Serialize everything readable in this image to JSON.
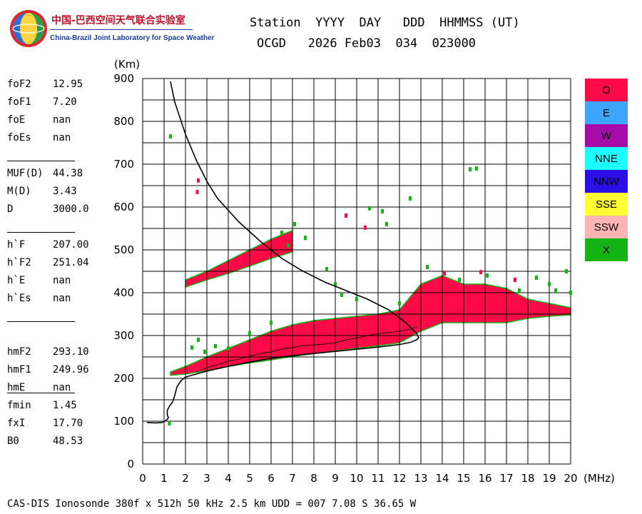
{
  "logo": {
    "cn": "中国-巴西空间天气联合实验室",
    "en": "China-Brazil Joint Laboratory for Space Weather"
  },
  "header": {
    "line1": "Station  YYYY  DAY   DDD  HHMMSS (UT)",
    "line2": "OCGD   2026 Feb03  034  023000"
  },
  "params": [
    {
      "name": "foF2",
      "value": "12.95"
    },
    {
      "name": "foF1",
      "value": "7.20"
    },
    {
      "name": "foE",
      "value": "nan"
    },
    {
      "name": "foEs",
      "value": "nan"
    },
    {
      "name": "MUF(D)",
      "value": "44.38"
    },
    {
      "name": "M(D)",
      "value": "3.43"
    },
    {
      "name": "D",
      "value": "3000.0"
    },
    {
      "name": "h`F",
      "value": "207.00"
    },
    {
      "name": "h`F2",
      "value": "251.04"
    },
    {
      "name": "h`E",
      "value": "nan"
    },
    {
      "name": "h`Es",
      "value": "nan"
    },
    {
      "name": "hmF2",
      "value": "293.10"
    },
    {
      "name": "hmF1",
      "value": "249.96"
    },
    {
      "name": "hmE",
      "value": "nan"
    },
    {
      "name": "fmin",
      "value": "1.45"
    },
    {
      "name": "fxI",
      "value": "17.70"
    },
    {
      "name": "B0",
      "value": "48.53"
    }
  ],
  "legend": [
    {
      "label": "O",
      "color": "#ff0a46"
    },
    {
      "label": "E",
      "color": "#3ea6ff"
    },
    {
      "label": "W",
      "color": "#a80ca8"
    },
    {
      "label": "NNE",
      "color": "#1affff"
    },
    {
      "label": "NNW",
      "color": "#2a0fe6"
    },
    {
      "label": "SSE",
      "color": "#ffff32"
    },
    {
      "label": "SSW",
      "color": "#ffb4b4"
    },
    {
      "label": "X",
      "color": "#14b414"
    }
  ],
  "footer": "CAS-DIS Ionosonde 380f x 512h 50 kHz 2.5 km UDD = 007 7.08 S 36.65 W",
  "chart_data": {
    "type": "scatter",
    "xlabel": "(MHz)",
    "ylabel": "(Km)",
    "xlim": [
      0,
      20
    ],
    "ylim": [
      0,
      900
    ],
    "xticks": [
      0,
      1,
      2,
      3,
      4,
      5,
      6,
      7,
      8,
      9,
      10,
      11,
      12,
      13,
      14,
      15,
      16,
      17,
      18,
      19,
      20
    ],
    "yticks": [
      0,
      100,
      200,
      300,
      400,
      500,
      600,
      700,
      800,
      900
    ],
    "grid": true,
    "series": [
      {
        "name": "O",
        "kind": "trace",
        "points": [
          [
            1.3,
            210
          ],
          [
            1.6,
            213
          ],
          [
            2.0,
            220
          ],
          [
            2.5,
            228
          ],
          [
            3.0,
            237
          ],
          [
            3.5,
            246
          ],
          [
            4.0,
            255
          ],
          [
            4.5,
            263
          ],
          [
            5.0,
            270
          ],
          [
            5.5,
            278
          ],
          [
            6.0,
            287
          ],
          [
            6.5,
            296
          ],
          [
            7.0,
            306
          ],
          [
            7.5,
            313
          ],
          [
            8.0,
            320
          ],
          [
            8.5,
            326
          ],
          [
            9.0,
            331
          ],
          [
            9.5,
            333
          ],
          [
            10.0,
            337
          ],
          [
            10.5,
            340
          ],
          [
            11.0,
            343
          ],
          [
            11.5,
            348
          ],
          [
            12.0,
            352
          ],
          [
            12.5,
            360
          ],
          [
            13.0,
            370
          ],
          [
            13.5,
            378
          ],
          [
            14.0,
            385
          ],
          [
            14.5,
            388
          ],
          [
            15.0,
            390
          ],
          [
            15.5,
            388
          ],
          [
            16.0,
            385
          ],
          [
            16.5,
            383
          ],
          [
            17.0,
            380
          ],
          [
            17.5,
            375
          ],
          [
            18.0,
            368
          ],
          [
            18.5,
            362
          ],
          [
            19.0,
            358
          ],
          [
            19.5,
            356
          ],
          [
            20.0,
            354
          ]
        ],
        "band_low": [
          [
            1.3,
            207
          ],
          [
            2.0,
            210
          ],
          [
            3.0,
            218
          ],
          [
            4.0,
            228
          ],
          [
            5.0,
            236
          ],
          [
            6.0,
            243
          ],
          [
            7.0,
            251
          ],
          [
            8.0,
            258
          ],
          [
            9.0,
            264
          ],
          [
            10.0,
            270
          ],
          [
            11.0,
            276
          ],
          [
            12.0,
            283
          ],
          [
            13.0,
            310
          ],
          [
            14.0,
            330
          ],
          [
            15.0,
            330
          ],
          [
            16.0,
            330
          ],
          [
            17.0,
            330
          ],
          [
            18.0,
            340
          ],
          [
            19.0,
            345
          ],
          [
            20.0,
            348
          ]
        ],
        "band_high": [
          [
            1.3,
            215
          ],
          [
            2.0,
            228
          ],
          [
            3.0,
            250
          ],
          [
            4.0,
            270
          ],
          [
            5.0,
            290
          ],
          [
            6.0,
            310
          ],
          [
            7.0,
            325
          ],
          [
            8.0,
            335
          ],
          [
            9.0,
            340
          ],
          [
            10.0,
            345
          ],
          [
            11.0,
            350
          ],
          [
            12.0,
            360
          ],
          [
            13.0,
            420
          ],
          [
            14.0,
            440
          ],
          [
            15.0,
            420
          ],
          [
            16.0,
            420
          ],
          [
            17.0,
            410
          ],
          [
            18.0,
            385
          ],
          [
            19.0,
            375
          ],
          [
            20.0,
            365
          ]
        ],
        "upper_band_low": [
          [
            2.0,
            413
          ],
          [
            3.0,
            430
          ],
          [
            4.0,
            445
          ],
          [
            5.0,
            462
          ],
          [
            6.0,
            480
          ],
          [
            7.0,
            495
          ]
        ],
        "upper_band_high": [
          [
            2.0,
            430
          ],
          [
            3.0,
            450
          ],
          [
            4.0,
            475
          ],
          [
            5.0,
            500
          ],
          [
            6.0,
            525
          ],
          [
            7.0,
            545
          ]
        ]
      },
      {
        "name": "X",
        "kind": "scattered",
        "points": [
          [
            1.3,
            765
          ],
          [
            1.25,
            95
          ],
          [
            2.3,
            272
          ],
          [
            2.6,
            290
          ],
          [
            2.9,
            262
          ],
          [
            3.4,
            275
          ],
          [
            4.0,
            270
          ],
          [
            5.0,
            305
          ],
          [
            6.0,
            330
          ],
          [
            6.5,
            540
          ],
          [
            6.8,
            510
          ],
          [
            7.1,
            560
          ],
          [
            7.6,
            528
          ],
          [
            8.6,
            455
          ],
          [
            9.0,
            420
          ],
          [
            9.3,
            395
          ],
          [
            10.0,
            385
          ],
          [
            10.6,
            597
          ],
          [
            11.2,
            590
          ],
          [
            11.4,
            560
          ],
          [
            12.5,
            620
          ],
          [
            12.0,
            375
          ],
          [
            13.3,
            460
          ],
          [
            15.3,
            688
          ],
          [
            15.6,
            690
          ],
          [
            17.6,
            405
          ],
          [
            18.4,
            435
          ],
          [
            19.0,
            420
          ],
          [
            19.3,
            405
          ],
          [
            19.8,
            450
          ],
          [
            16.1,
            440
          ],
          [
            14.8,
            430
          ],
          [
            20.0,
            400
          ]
        ]
      },
      {
        "name": "O",
        "kind": "scattered",
        "points": [
          [
            2.6,
            662
          ],
          [
            2.55,
            635
          ],
          [
            9.5,
            580
          ],
          [
            10.4,
            552
          ],
          [
            14.1,
            445
          ],
          [
            15.8,
            448
          ],
          [
            17.4,
            430
          ]
        ]
      }
    ],
    "curves": [
      {
        "name": "profile",
        "points": [
          [
            0.2,
            97
          ],
          [
            0.6,
            96
          ],
          [
            0.9,
            97
          ],
          [
            1.0,
            99
          ],
          [
            1.15,
            104
          ],
          [
            1.2,
            108
          ],
          [
            1.15,
            115
          ],
          [
            1.15,
            125
          ],
          [
            1.25,
            135
          ],
          [
            1.4,
            145
          ],
          [
            1.5,
            160
          ],
          [
            1.6,
            180
          ],
          [
            1.8,
            195
          ],
          [
            2.0,
            203
          ],
          [
            2.5,
            210
          ],
          [
            3.0,
            217
          ],
          [
            4.0,
            228
          ],
          [
            5.0,
            238
          ],
          [
            6.0,
            247
          ],
          [
            7.0,
            253
          ],
          [
            8.0,
            258
          ],
          [
            9.0,
            263
          ],
          [
            10.0,
            268
          ],
          [
            11.0,
            273
          ],
          [
            12.0,
            279
          ],
          [
            12.5,
            284
          ],
          [
            12.8,
            290
          ],
          [
            12.9,
            295
          ],
          [
            12.8,
            305
          ],
          [
            12.3,
            330
          ],
          [
            11.5,
            360
          ],
          [
            10.5,
            385
          ],
          [
            9.5,
            405
          ],
          [
            8.5,
            425
          ],
          [
            7.5,
            450
          ],
          [
            6.5,
            480
          ],
          [
            5.5,
            520
          ],
          [
            4.5,
            565
          ],
          [
            3.5,
            620
          ],
          [
            3.0,
            660
          ],
          [
            2.5,
            710
          ],
          [
            2.0,
            770
          ],
          [
            1.5,
            845
          ],
          [
            1.3,
            893
          ]
        ]
      },
      {
        "name": "trace-fine",
        "points": [
          [
            2.5,
            215
          ],
          [
            3.0,
            225
          ],
          [
            3.5,
            232
          ],
          [
            4.0,
            240
          ],
          [
            4.5,
            245
          ],
          [
            5.0,
            252
          ],
          [
            5.5,
            258
          ],
          [
            6.0,
            262
          ],
          [
            6.5,
            268
          ],
          [
            7.0,
            272
          ],
          [
            7.5,
            276
          ],
          [
            8.0,
            278
          ],
          [
            8.5,
            280
          ],
          [
            9.0,
            283
          ],
          [
            9.5,
            290
          ],
          [
            10.0,
            294
          ],
          [
            10.5,
            300
          ],
          [
            11.0,
            304
          ],
          [
            11.5,
            307
          ],
          [
            12.0,
            310
          ],
          [
            12.5,
            315
          ],
          [
            12.8,
            320
          ]
        ]
      }
    ]
  }
}
